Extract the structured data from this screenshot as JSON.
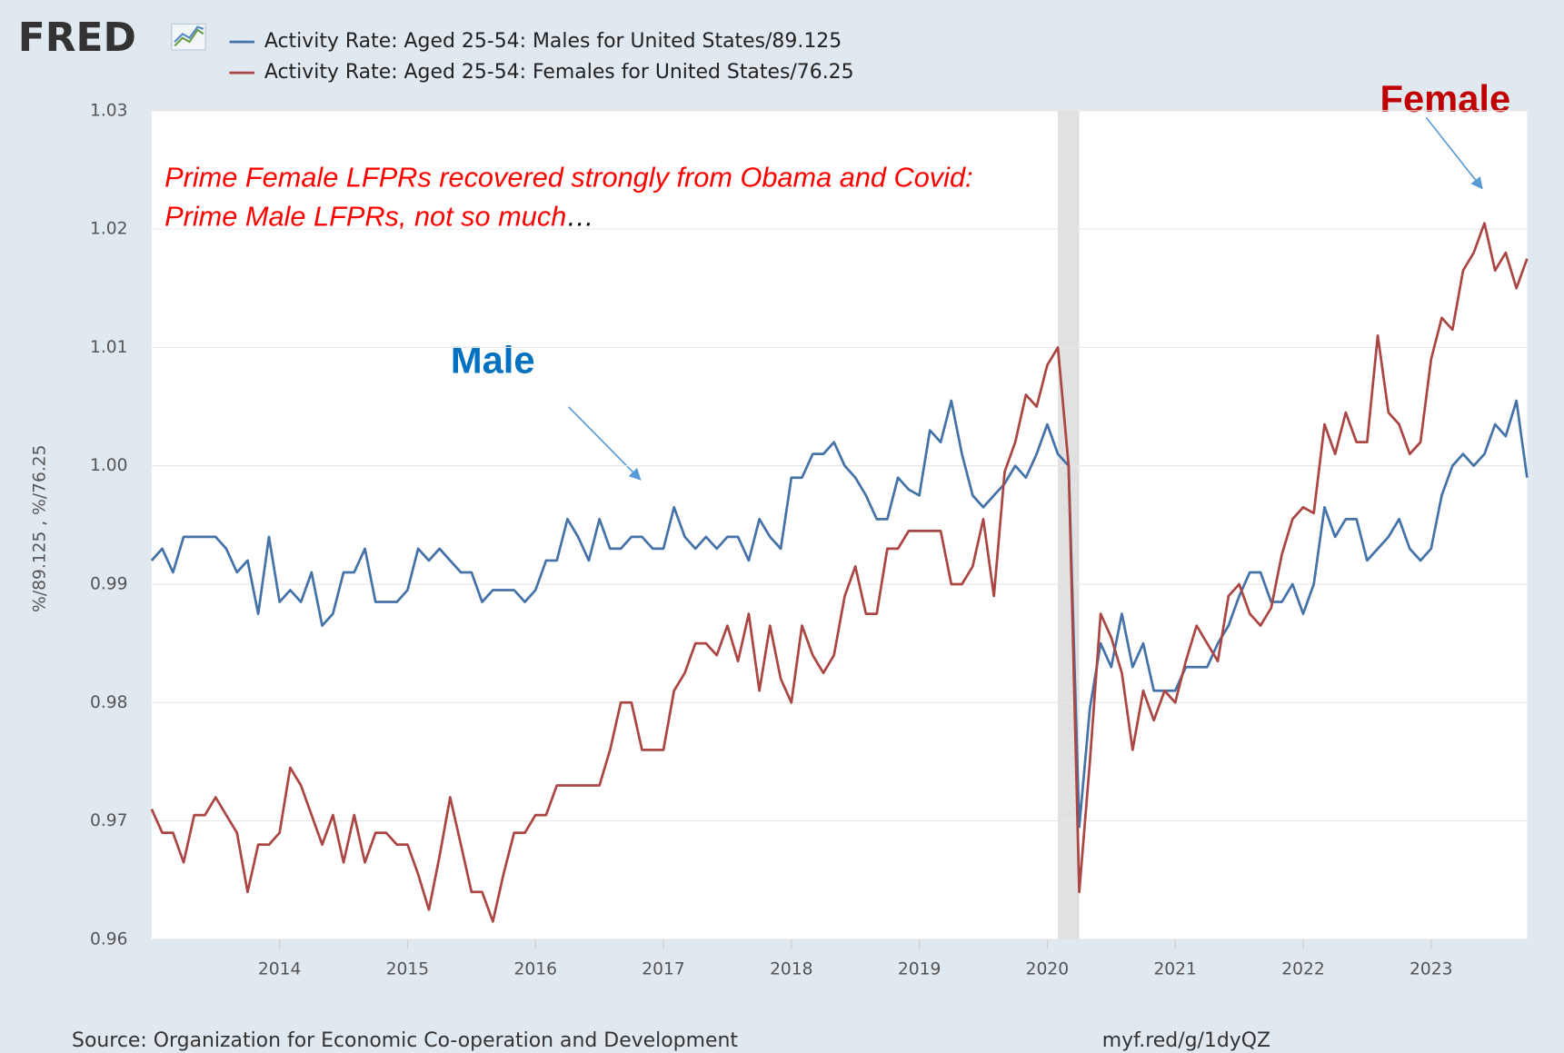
{
  "chart_data": {
    "type": "line",
    "logo": "FRED",
    "y_label": "%/89.125 , %/76.25",
    "source": "Source: Organization for Economic Co-operation and Development",
    "short_url": "myf.red/g/1dyQZ",
    "annotations": {
      "line1": "Prime Female LFPRs recovered strongly from Obama and Covid:",
      "line2": "Prime Male LFPRs, not so much",
      "line2_end": "…",
      "male_label": "Male",
      "female_label": "Female"
    },
    "xlim": [
      2013,
      2023.75
    ],
    "xticks": [
      2014,
      2015,
      2016,
      2017,
      2018,
      2019,
      2020,
      2021,
      2022,
      2023
    ],
    "ylim": [
      0.96,
      1.03
    ],
    "yticks": [
      0.96,
      0.97,
      0.98,
      0.99,
      {
        "value": 1,
        "label": "1.00"
      },
      1.01,
      1.02,
      1.03
    ],
    "grid": true,
    "shaded_x": [
      [
        2020.083,
        2020.25
      ]
    ],
    "x": [
      2013,
      2013.083,
      2013.167,
      2013.25,
      2013.333,
      2013.417,
      2013.5,
      2013.583,
      2013.667,
      2013.75,
      2013.833,
      2013.917,
      2014,
      2014.083,
      2014.167,
      2014.25,
      2014.333,
      2014.417,
      2014.5,
      2014.583,
      2014.667,
      2014.75,
      2014.833,
      2014.917,
      2015,
      2015.083,
      2015.167,
      2015.25,
      2015.333,
      2015.417,
      2015.5,
      2015.583,
      2015.667,
      2015.75,
      2015.833,
      2015.917,
      2016,
      2016.083,
      2016.167,
      2016.25,
      2016.333,
      2016.417,
      2016.5,
      2016.583,
      2016.667,
      2016.75,
      2016.833,
      2016.917,
      2017,
      2017.083,
      2017.167,
      2017.25,
      2017.333,
      2017.417,
      2017.5,
      2017.583,
      2017.667,
      2017.75,
      2017.833,
      2017.917,
      2018,
      2018.083,
      2018.167,
      2018.25,
      2018.333,
      2018.417,
      2018.5,
      2018.583,
      2018.667,
      2018.75,
      2018.833,
      2018.917,
      2019,
      2019.083,
      2019.167,
      2019.25,
      2019.333,
      2019.417,
      2019.5,
      2019.583,
      2019.667,
      2019.75,
      2019.833,
      2019.917,
      2020,
      2020.083,
      2020.167,
      2020.25,
      2020.333,
      2020.417,
      2020.5,
      2020.583,
      2020.667,
      2020.75,
      2020.833,
      2020.917,
      2021,
      2021.083,
      2021.167,
      2021.25,
      2021.333,
      2021.417,
      2021.5,
      2021.583,
      2021.667,
      2021.75,
      2021.833,
      2021.917,
      2022,
      2022.083,
      2022.167,
      2022.25,
      2022.333,
      2022.417,
      2022.5,
      2022.583,
      2022.667,
      2022.75,
      2022.833,
      2022.917,
      2023,
      2023.083,
      2023.167,
      2023.25,
      2023.333,
      2023.417,
      2023.5,
      2023.583,
      2023.667,
      2023.75
    ],
    "series": [
      {
        "name": "Activity Rate: Aged 25-54: Males for United States/89.125",
        "color": "#4572a7",
        "values": [
          0.992,
          0.993,
          0.991,
          0.994,
          0.994,
          0.994,
          0.994,
          0.993,
          0.991,
          0.992,
          0.9875,
          0.994,
          0.9885,
          0.9895,
          0.9885,
          0.991,
          0.9865,
          0.9875,
          0.991,
          0.991,
          0.993,
          0.9885,
          0.9885,
          0.9885,
          0.9895,
          0.993,
          0.992,
          0.993,
          0.992,
          0.991,
          0.991,
          0.9885,
          0.9895,
          0.9895,
          0.9895,
          0.9885,
          0.9895,
          0.992,
          0.992,
          0.9955,
          0.994,
          0.992,
          0.9955,
          0.993,
          0.993,
          0.994,
          0.994,
          0.993,
          0.993,
          0.9965,
          0.994,
          0.993,
          0.994,
          0.993,
          0.994,
          0.994,
          0.992,
          0.9955,
          0.994,
          0.993,
          0.999,
          0.999,
          1.001,
          1.001,
          1.002,
          1.0,
          0.999,
          0.9975,
          0.9955,
          0.9955,
          0.999,
          0.998,
          0.9975,
          1.003,
          1.002,
          1.0055,
          1.001,
          0.9975,
          0.9965,
          0.9975,
          0.9985,
          1.0,
          0.999,
          1.001,
          1.0035,
          1.001,
          1.0,
          0.9695,
          0.9795,
          0.985,
          0.983,
          0.9875,
          0.983,
          0.985,
          0.981,
          0.981,
          0.981,
          0.983,
          0.983,
          0.983,
          0.985,
          0.9865,
          0.989,
          0.991,
          0.991,
          0.9885,
          0.9885,
          0.99,
          0.9875,
          0.99,
          0.9965,
          0.994,
          0.9955,
          0.9955,
          0.992,
          0.993,
          0.994,
          0.9955,
          0.993,
          0.992,
          0.993,
          0.9975,
          1.0,
          1.001,
          1.0,
          1.001,
          1.0035,
          1.0025,
          1.0055,
          0.999
        ]
      },
      {
        "name": "Activity Rate: Aged 25-54: Females for United States/76.25",
        "color": "#aa4643",
        "values": [
          0.971,
          0.969,
          0.969,
          0.9665,
          0.9705,
          0.9705,
          0.972,
          0.9705,
          0.969,
          0.964,
          0.968,
          0.968,
          0.969,
          0.9745,
          0.973,
          0.9705,
          0.968,
          0.9705,
          0.9665,
          0.9705,
          0.9665,
          0.969,
          0.969,
          0.968,
          0.968,
          0.9655,
          0.9625,
          0.967,
          0.972,
          0.968,
          0.964,
          0.964,
          0.9615,
          0.9655,
          0.969,
          0.969,
          0.9705,
          0.9705,
          0.973,
          0.973,
          0.973,
          0.973,
          0.973,
          0.976,
          0.98,
          0.98,
          0.976,
          0.976,
          0.976,
          0.981,
          0.9825,
          0.985,
          0.985,
          0.984,
          0.9865,
          0.9835,
          0.9875,
          0.981,
          0.9865,
          0.982,
          0.98,
          0.9865,
          0.984,
          0.9825,
          0.984,
          0.989,
          0.9915,
          0.9875,
          0.9875,
          0.993,
          0.993,
          0.9945,
          0.9945,
          0.9945,
          0.9945,
          0.99,
          0.99,
          0.9915,
          0.9955,
          0.989,
          0.9995,
          1.002,
          1.006,
          1.005,
          1.0085,
          1.01,
          1.0,
          0.964,
          0.975,
          0.9875,
          0.9855,
          0.9825,
          0.976,
          0.981,
          0.9785,
          0.981,
          0.98,
          0.9835,
          0.9865,
          0.985,
          0.9835,
          0.989,
          0.99,
          0.9875,
          0.9865,
          0.988,
          0.9925,
          0.9955,
          0.9965,
          0.996,
          1.0035,
          1.001,
          1.0045,
          1.002,
          1.002,
          1.011,
          1.0045,
          1.0035,
          1.001,
          1.002,
          1.009,
          1.0125,
          1.0115,
          1.0165,
          1.018,
          1.0205,
          1.0165,
          1.018,
          1.015,
          1.0175
        ]
      }
    ]
  }
}
